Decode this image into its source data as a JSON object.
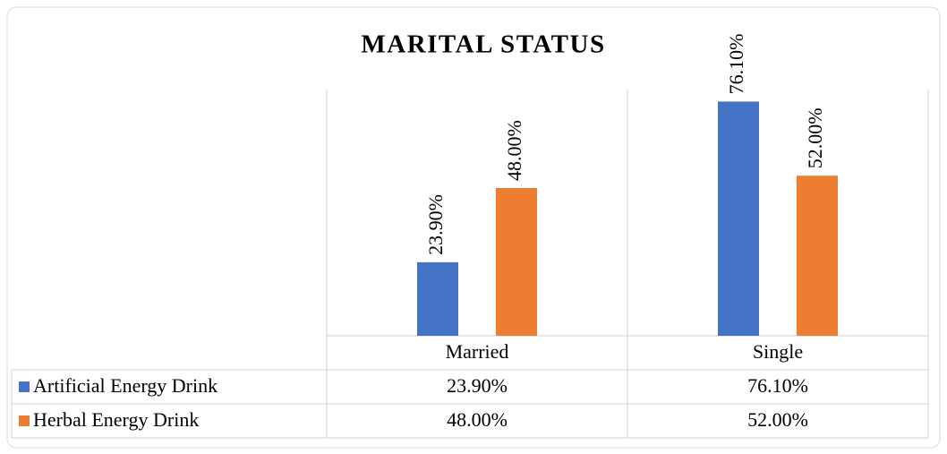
{
  "chart_data": {
    "type": "bar",
    "title": "MARITAL STATUS",
    "categories": [
      "Married",
      "Single"
    ],
    "series": [
      {
        "name": "Artificial Energy Drink",
        "color": "#4472c4",
        "values": [
          23.9,
          76.1
        ],
        "value_labels": [
          "23.90%",
          "76.10%"
        ]
      },
      {
        "name": "Herbal Energy Drink",
        "color": "#ed7d31",
        "values": [
          48.0,
          52.0
        ],
        "value_labels": [
          "48.00%",
          "52.00%"
        ]
      }
    ],
    "ylim": [
      0,
      80
    ]
  }
}
